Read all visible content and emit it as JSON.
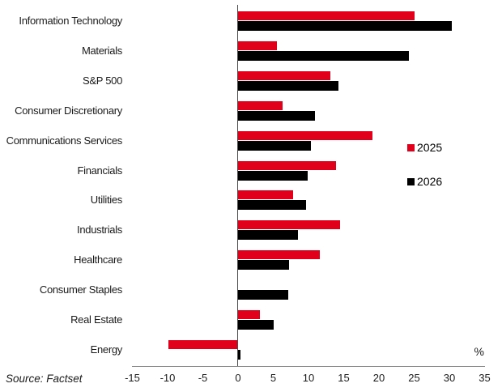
{
  "source_note": "Source: Factset",
  "percent_label": "%",
  "legend": {
    "items": [
      {
        "label": "2025",
        "color": "#e0001b"
      },
      {
        "label": "2026",
        "color": "#000000"
      }
    ]
  },
  "chart_data": {
    "type": "bar",
    "orientation": "horizontal",
    "title": "",
    "xlabel": "%",
    "ylabel": "",
    "xlim": [
      -15,
      35
    ],
    "xticks": [
      -15,
      -10,
      -5,
      0,
      5,
      10,
      15,
      20,
      25,
      30,
      35
    ],
    "grid": false,
    "legend_position": "middle-right",
    "categories": [
      "Information Technology",
      "Materials",
      "S&P 500",
      "Consumer Discretionary",
      "Communications Services",
      "Financials",
      "Utilities",
      "Industrials",
      "Healthcare",
      "Consumer Staples",
      "Real Estate",
      "Energy"
    ],
    "series": [
      {
        "name": "2025",
        "color": "#e0001b",
        "values": [
          25.0,
          5.5,
          13.1,
          6.3,
          19.1,
          13.9,
          7.8,
          14.5,
          11.6,
          0.0,
          3.1,
          -9.9
        ]
      },
      {
        "name": "2026",
        "color": "#000000",
        "values": [
          30.3,
          24.2,
          14.3,
          10.9,
          10.3,
          9.9,
          9.7,
          8.5,
          7.2,
          7.1,
          5.0,
          0.3
        ]
      }
    ]
  }
}
